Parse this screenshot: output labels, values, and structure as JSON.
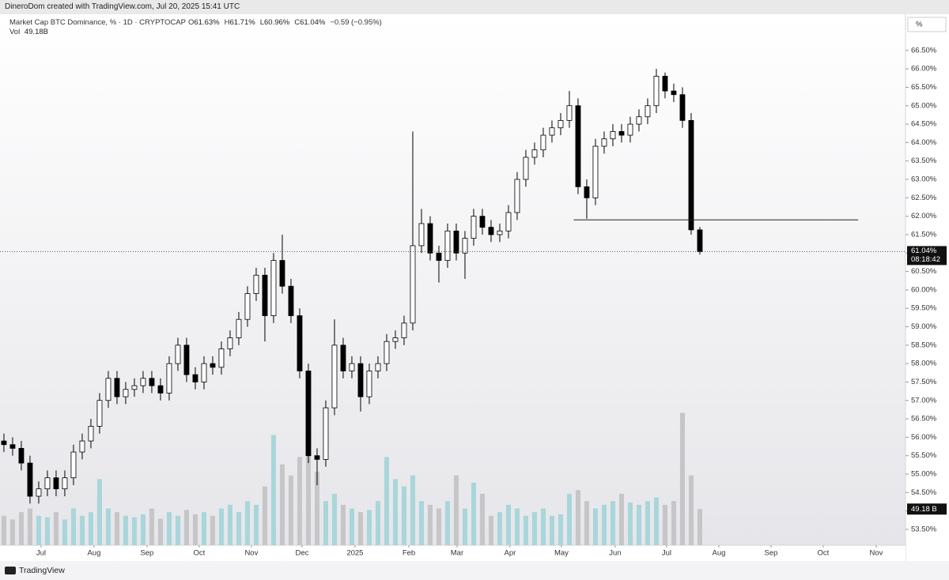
{
  "header": "DineroDom created with TradingView.com, Jul 20, 2025 15:41 UTC",
  "footer": "TradingView",
  "chart_data": {
    "type": "candlestick",
    "symbol": "Market Cap BTC Dominance, % · 1D · CRYPTOCAP",
    "legend": [
      {
        "key": "O",
        "text": "61.63%"
      },
      {
        "key": "H",
        "text": "61.71%"
      },
      {
        "key": "L",
        "text": "60.96%"
      },
      {
        "key": "C",
        "text": "61.04%"
      }
    ],
    "change": "−0.59 (−0.95%)",
    "volume_title": "Vol",
    "volume_text": "49.18B",
    "axis_unit": "%",
    "last_price_label": "61.04%",
    "countdown": "08:18:42",
    "volume_value_label": "49.18 B",
    "up_color": "#ffffff",
    "down_color": "#000000",
    "wick_color": "#000000",
    "volume_up_color": "#a9d6da",
    "volume_down_color": "#c6c6c9",
    "xlim": [
      -0.45,
      103.64
    ],
    "ylim": [
      53.07,
      67.44
    ],
    "volume_ylim": [
      0,
      720
    ],
    "yticks": [
      {
        "value": 53.5,
        "label": "53.50%"
      },
      {
        "value": 54,
        "label": "54.00%"
      },
      {
        "value": 54.5,
        "label": "54.50%"
      },
      {
        "value": 55,
        "label": "55.00%"
      },
      {
        "value": 55.5,
        "label": "55.50%"
      },
      {
        "value": 56,
        "label": "56.00%"
      },
      {
        "value": 56.5,
        "label": "56.50%"
      },
      {
        "value": 57,
        "label": "57.00%"
      },
      {
        "value": 57.5,
        "label": "57.50%"
      },
      {
        "value": 58,
        "label": "58.00%"
      },
      {
        "value": 58.5,
        "label": "58.50%"
      },
      {
        "value": 59,
        "label": "59.00%"
      },
      {
        "value": 59.5,
        "label": "59.50%"
      },
      {
        "value": 60,
        "label": "60.00%"
      },
      {
        "value": 60.5,
        "label": "60.50%"
      },
      {
        "value": 61,
        "label": "61.00%"
      },
      {
        "value": 61.5,
        "label": "61.50%"
      },
      {
        "value": 62,
        "label": "62.00%"
      },
      {
        "value": 62.5,
        "label": "62.50%"
      },
      {
        "value": 63,
        "label": "63.00%"
      },
      {
        "value": 63.5,
        "label": "63.50%"
      },
      {
        "value": 64,
        "label": "64.00%"
      },
      {
        "value": 64.5,
        "label": "64.50%"
      },
      {
        "value": 65,
        "label": "65.00%"
      },
      {
        "value": 65.5,
        "label": "65.50%"
      },
      {
        "value": 66,
        "label": "66.00%"
      },
      {
        "value": 66.5,
        "label": "66.50%"
      }
    ],
    "xticks": [
      {
        "value": 4.27,
        "label": "Jul"
      },
      {
        "value": 10.36,
        "label": "Aug"
      },
      {
        "value": 16.45,
        "label": "Sep"
      },
      {
        "value": 22.45,
        "label": "Oct"
      },
      {
        "value": 28.45,
        "label": "Nov"
      },
      {
        "value": 34.27,
        "label": "Dec"
      },
      {
        "value": 40.36,
        "label": "2025"
      },
      {
        "value": 46.55,
        "label": "Feb"
      },
      {
        "value": 52.09,
        "label": "Mar"
      },
      {
        "value": 58.18,
        "label": "Apr"
      },
      {
        "value": 64.09,
        "label": "May"
      },
      {
        "value": 70.27,
        "label": "Jun"
      },
      {
        "value": 76.18,
        "label": "Jul"
      },
      {
        "value": 82.18,
        "label": "Aug"
      },
      {
        "value": 88.18,
        "label": "Sep"
      },
      {
        "value": 94.18,
        "label": "Oct"
      },
      {
        "value": 100.27,
        "label": "Nov"
      }
    ],
    "level_line": {
      "value": 61.9,
      "from": 65.5,
      "to": 98.2
    },
    "open": [
      55.9,
      55.8,
      55.7,
      55.3,
      54.4,
      54.6,
      54.9,
      54.6,
      54.9,
      55.6,
      55.9,
      56.3,
      57.0,
      57.6,
      57.1,
      57.3,
      57.4,
      57.6,
      57.4,
      57.2,
      58.0,
      58.5,
      57.7,
      57.5,
      58.0,
      57.9,
      58.4,
      58.7,
      59.2,
      59.9,
      60.4,
      59.3,
      60.8,
      60.1,
      59.3,
      57.8,
      55.5,
      55.4,
      56.8,
      58.5,
      57.8,
      58.0,
      57.1,
      57.8,
      58.0,
      58.6,
      58.7,
      59.1,
      61.2,
      61.8,
      61.0,
      60.8,
      61.6,
      61.0,
      61.4,
      62.0,
      61.7,
      61.5,
      61.6,
      62.1,
      63.0,
      63.6,
      63.8,
      64.2,
      64.4,
      64.6,
      65.0,
      62.8,
      62.5,
      63.9,
      64.1,
      64.3,
      64.2,
      64.5,
      64.7,
      65.0,
      65.8,
      65.4,
      65.3,
      64.6,
      61.63
    ],
    "high": [
      56.1,
      56.0,
      55.9,
      55.5,
      54.8,
      55.1,
      55.1,
      55.1,
      55.8,
      56.1,
      56.5,
      57.2,
      57.8,
      57.8,
      57.5,
      57.6,
      57.8,
      57.8,
      57.6,
      58.2,
      58.7,
      58.7,
      57.9,
      58.2,
      58.2,
      58.6,
      58.9,
      59.4,
      60.1,
      60.6,
      60.6,
      61.0,
      61.5,
      60.3,
      59.5,
      58.0,
      55.7,
      57.0,
      59.2,
      58.7,
      58.2,
      58.2,
      58.0,
      58.2,
      58.8,
      58.9,
      59.3,
      64.3,
      62.2,
      62.0,
      61.2,
      61.8,
      61.8,
      61.6,
      62.2,
      62.2,
      61.9,
      61.8,
      62.3,
      63.2,
      63.8,
      64.0,
      64.4,
      64.6,
      64.8,
      65.4,
      65.2,
      63.0,
      64.1,
      64.3,
      64.5,
      64.5,
      64.7,
      64.9,
      65.2,
      66.0,
      65.9,
      65.6,
      65.5,
      64.8,
      61.71
    ],
    "low": [
      55.6,
      55.5,
      55.1,
      54.2,
      54.2,
      54.4,
      54.4,
      54.4,
      54.7,
      55.4,
      55.7,
      56.1,
      56.8,
      56.9,
      56.9,
      57.1,
      57.2,
      57.2,
      57.0,
      57.0,
      57.8,
      57.5,
      57.3,
      57.3,
      57.7,
      57.7,
      58.2,
      58.5,
      59.0,
      59.7,
      58.6,
      59.1,
      59.9,
      59.1,
      57.6,
      55.3,
      54.7,
      55.2,
      56.6,
      57.6,
      57.6,
      56.7,
      56.9,
      57.6,
      57.8,
      58.4,
      58.5,
      58.9,
      61.0,
      60.8,
      60.2,
      60.6,
      60.8,
      60.3,
      61.2,
      61.5,
      61.3,
      61.3,
      61.4,
      61.9,
      62.8,
      63.4,
      63.6,
      64.0,
      64.2,
      64.4,
      62.6,
      61.93,
      62.3,
      63.7,
      63.9,
      64.0,
      64.0,
      64.3,
      64.5,
      64.8,
      65.2,
      65.1,
      64.4,
      61.5,
      60.96
    ],
    "close": [
      55.8,
      55.7,
      55.3,
      54.4,
      54.6,
      54.9,
      54.6,
      54.9,
      55.6,
      55.9,
      56.3,
      57.0,
      57.6,
      57.1,
      57.3,
      57.4,
      57.6,
      57.4,
      57.2,
      58.0,
      58.5,
      57.7,
      57.5,
      58.0,
      57.9,
      58.4,
      58.7,
      59.2,
      59.9,
      60.4,
      59.3,
      60.8,
      60.1,
      59.3,
      57.8,
      55.5,
      55.4,
      56.8,
      58.5,
      57.8,
      58.0,
      57.1,
      57.8,
      58.0,
      58.6,
      58.7,
      59.1,
      61.2,
      61.8,
      61.0,
      60.8,
      61.6,
      61.0,
      61.4,
      62.0,
      61.7,
      61.5,
      61.6,
      62.1,
      63.0,
      63.6,
      63.8,
      64.2,
      64.4,
      64.6,
      65.0,
      62.8,
      62.5,
      63.9,
      64.1,
      64.3,
      64.2,
      64.5,
      64.7,
      65.0,
      65.8,
      65.4,
      65.3,
      64.6,
      61.63,
      61.04
    ],
    "volume": [
      40,
      35,
      45,
      50,
      40,
      38,
      45,
      35,
      50,
      40,
      45,
      90,
      50,
      45,
      40,
      38,
      42,
      50,
      36,
      45,
      40,
      48,
      42,
      45,
      40,
      50,
      55,
      45,
      60,
      55,
      80,
      150,
      110,
      95,
      120,
      140,
      100,
      60,
      70,
      55,
      50,
      45,
      48,
      60,
      120,
      90,
      80,
      95,
      60,
      55,
      50,
      60,
      95,
      50,
      85,
      70,
      40,
      45,
      55,
      50,
      40,
      45,
      50,
      40,
      42,
      70,
      75,
      60,
      50,
      55,
      60,
      70,
      58,
      55,
      60,
      65,
      55,
      60,
      180,
      95,
      49.18
    ]
  }
}
